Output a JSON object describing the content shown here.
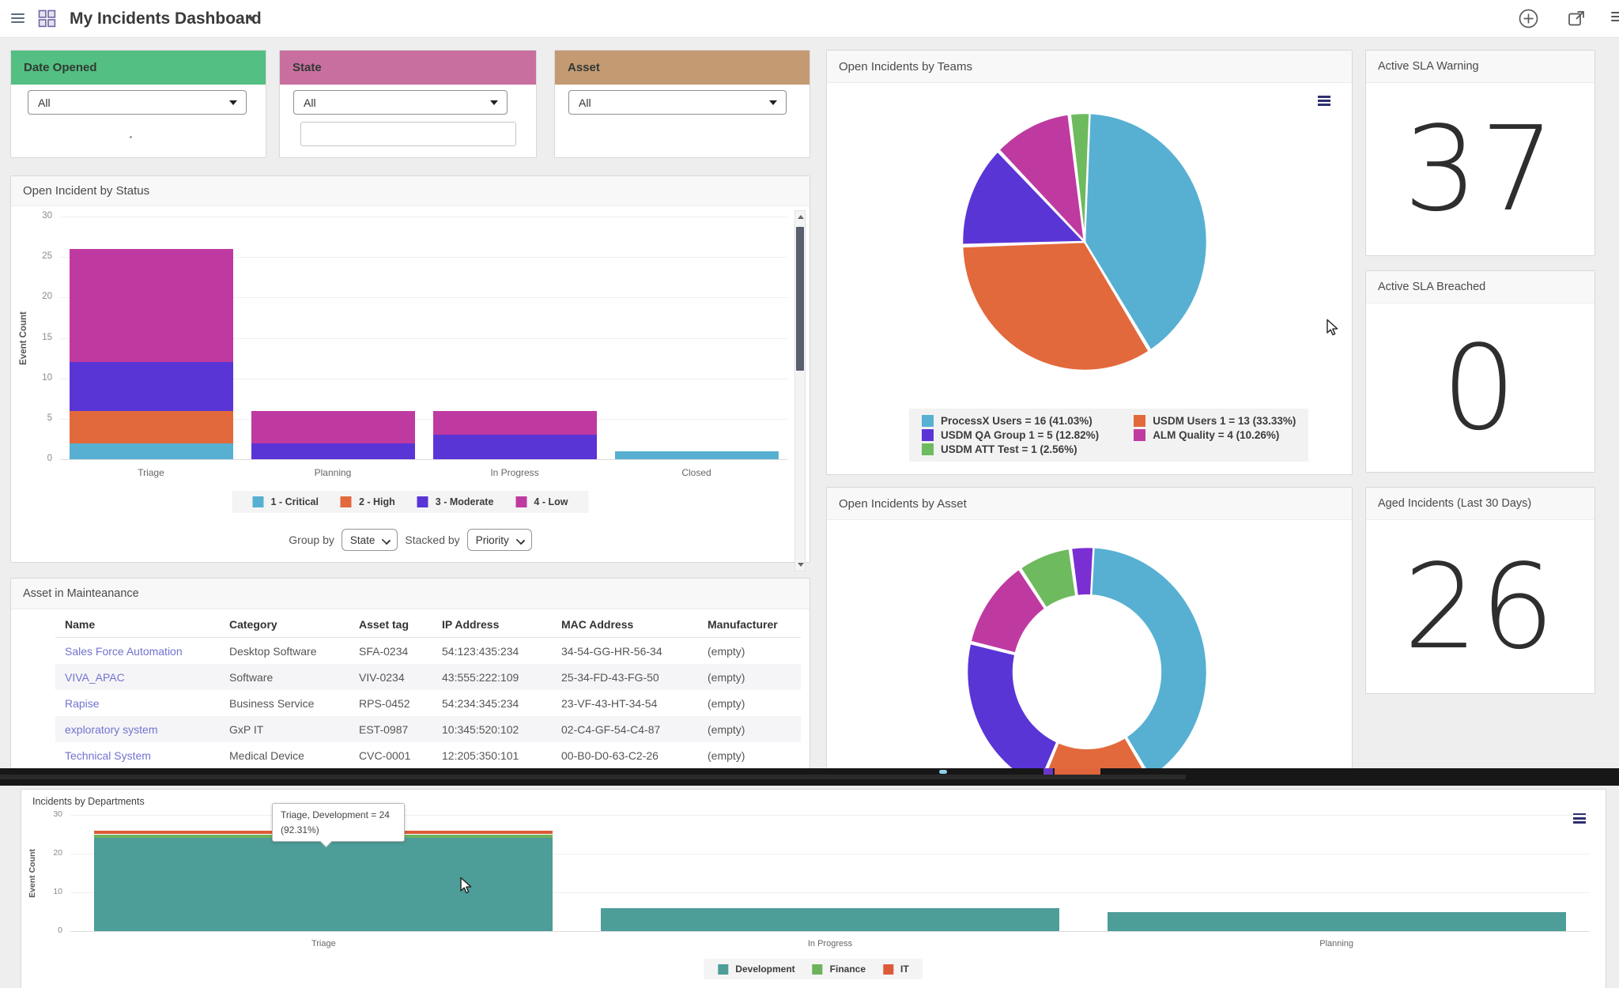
{
  "topbar": {
    "title": "My Incidents Dashboard"
  },
  "filters": {
    "date_opened": {
      "label": "Date Opened",
      "value": "All",
      "header_color": "#54bf82"
    },
    "state": {
      "label": "State",
      "value": "All",
      "input_value": "",
      "header_color": "#c96f9f"
    },
    "asset": {
      "label": "Asset",
      "value": "All",
      "header_color": "#c49a72"
    }
  },
  "status_widget": {
    "title": "Open Incident by Status",
    "ylabel": "Event Count",
    "group_by_label": "Group by",
    "group_by_value": "State",
    "stacked_by_label": "Stacked by",
    "stacked_by_value": "Priority"
  },
  "teams_widget": {
    "title": "Open Incidents by Teams",
    "legend": [
      "ProcessX Users = 16 (41.03%)",
      "USDM QA Group 1 = 5 (12.82%)",
      "USDM ATT Test = 1 (2.56%)",
      "USDM Users 1 = 13 (33.33%)",
      "ALM Quality = 4 (10.26%)"
    ],
    "legend_colors": [
      "#57b0d2",
      "#5a35d6",
      "#6eba5e",
      "#e2693c",
      "#bf3aa0"
    ]
  },
  "sla_warning": {
    "title": "Active SLA Warning",
    "value": "37"
  },
  "sla_breached": {
    "title": "Active SLA Breached",
    "value": "0"
  },
  "aged": {
    "title": "Aged Incidents (Last 30 Days)",
    "value": "26"
  },
  "asset_widget": {
    "title": "Open Incidents by Asset"
  },
  "table_widget": {
    "title": "Asset in Mainteanance",
    "headers": [
      "Name",
      "Category",
      "Asset tag",
      "IP Address",
      "MAC Address",
      "Manufacturer"
    ],
    "rows": [
      [
        "Sales Force Automation",
        "Desktop Software",
        "SFA-0234",
        "54:123:435:234",
        "34-54-GG-HR-56-34",
        "(empty)"
      ],
      [
        "VIVA_APAC",
        "Software",
        "VIV-0234",
        "43:555:222:109",
        "25-34-FD-43-FG-50",
        "(empty)"
      ],
      [
        "Rapise",
        "Business Service",
        "RPS-0452",
        "54:234:345:234",
        "23-VF-43-HT-34-54",
        "(empty)"
      ],
      [
        "exploratory system",
        "GxP IT",
        "EST-0987",
        "10:345:520:102",
        "02-C4-GF-54-C4-87",
        "(empty)"
      ],
      [
        "Technical System",
        "Medical Device",
        "CVC-0001",
        "12:205:350:101",
        "00-B0-D0-63-C2-26",
        "(empty)"
      ]
    ]
  },
  "departments_widget": {
    "title": "Incidents by Departments",
    "ylabel": "Event Count",
    "tooltip": {
      "line1": "Triage, Development = 24",
      "line2": "(92.31%)"
    }
  },
  "chart_data": [
    {
      "id": "status",
      "type": "bar",
      "stacked": true,
      "title": "Open Incident by Status",
      "ylabel": "Event Count",
      "ylim": [
        0,
        30
      ],
      "ytick_step": 5,
      "grid": true,
      "legend_position": "bottom",
      "categories": [
        "Triage",
        "Planning",
        "In Progress",
        "Closed"
      ],
      "series": [
        {
          "name": "1 - Critical",
          "color": "#57b0d2",
          "values": [
            2,
            0,
            0,
            1
          ]
        },
        {
          "name": "2 - High",
          "color": "#e2693c",
          "values": [
            4,
            0,
            0,
            0
          ]
        },
        {
          "name": "3 - Moderate",
          "color": "#5a35d6",
          "values": [
            6,
            2,
            3,
            0
          ]
        },
        {
          "name": "4 - Low",
          "color": "#bf3aa0",
          "values": [
            14,
            4,
            3,
            0
          ]
        }
      ]
    },
    {
      "id": "teams",
      "type": "pie",
      "title": "Open Incidents by Teams",
      "legend_position": "bottom",
      "segments": [
        {
          "label": "ProcessX Users",
          "value": 16,
          "pct": 41.03,
          "color": "#57b0d2"
        },
        {
          "label": "USDM Users 1",
          "value": 13,
          "pct": 33.33,
          "color": "#e2693c"
        },
        {
          "label": "USDM QA Group 1",
          "value": 5,
          "pct": 12.82,
          "color": "#5a35d6"
        },
        {
          "label": "ALM Quality",
          "value": 4,
          "pct": 10.26,
          "color": "#bf3aa0"
        },
        {
          "label": "USDM ATT Test",
          "value": 1,
          "pct": 2.56,
          "color": "#6eba5e"
        }
      ]
    },
    {
      "id": "asset",
      "type": "pie",
      "donut": true,
      "title": "Open Incidents by Asset",
      "segments": [
        {
          "label": "segment-teal",
          "pct": 41,
          "color": "#57b0d2"
        },
        {
          "label": "segment-orange",
          "pct": 15,
          "color": "#e2693c"
        },
        {
          "label": "segment-purple",
          "pct": 22,
          "color": "#5a35d6"
        },
        {
          "label": "segment-magenta",
          "pct": 11.5,
          "color": "#bf3aa0"
        },
        {
          "label": "segment-green",
          "pct": 7,
          "color": "#6eba5e"
        },
        {
          "label": "segment-violet",
          "pct": 3,
          "color": "#7a2fd2"
        }
      ]
    },
    {
      "id": "departments",
      "type": "bar",
      "stacked": true,
      "title": "Incidents by Departments",
      "ylabel": "Event Count",
      "ylim": [
        0,
        30
      ],
      "ytick_step": 10,
      "grid": true,
      "legend_position": "bottom",
      "categories": [
        "Triage",
        "In Progress",
        "Planning"
      ],
      "series": [
        {
          "name": "Development",
          "color": "#4d9d99",
          "values": [
            24,
            6,
            5
          ]
        },
        {
          "name": "Finance",
          "color": "#6cb35c",
          "values": [
            1,
            0,
            0
          ]
        },
        {
          "name": "IT",
          "color": "#dd5a38",
          "values": [
            1,
            0,
            0
          ]
        }
      ]
    }
  ]
}
